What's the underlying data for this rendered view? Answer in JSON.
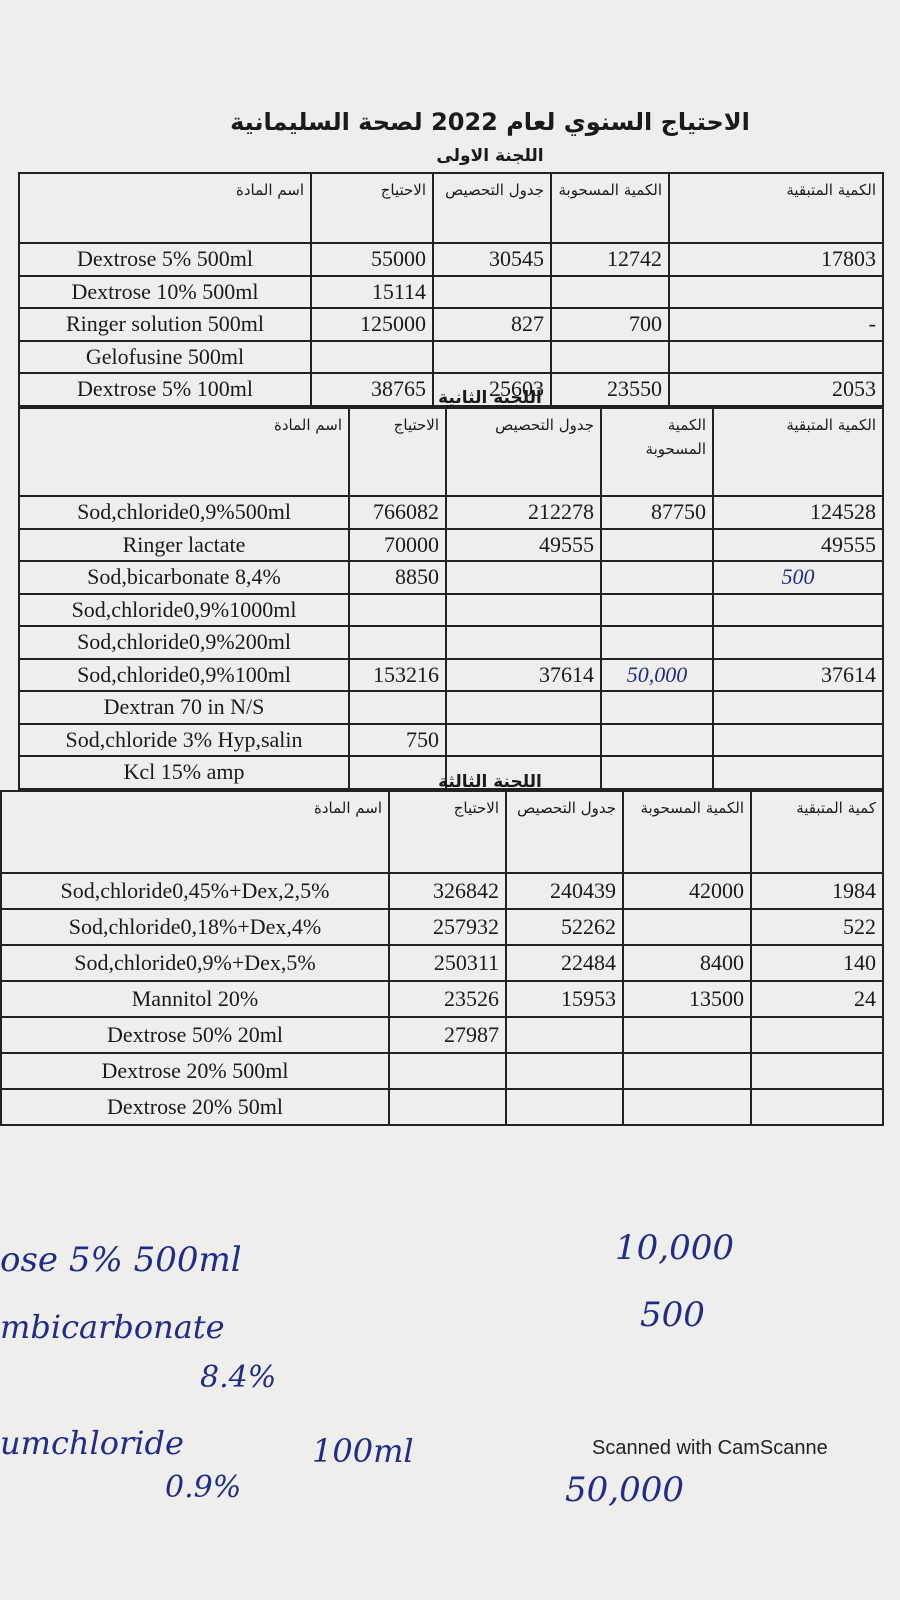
{
  "header": {
    "title": "الاحتياج السنوي لعام 2022 لصحة السليمانية"
  },
  "tables": [
    {
      "title": "اللجنة الاولى",
      "columns": [
        "اسم المادة",
        "الاحتياج",
        "جدول التحصيص",
        "الكمية المسحوبة",
        "الكمية المتبقية"
      ],
      "rows": [
        [
          "Dextrose 5% 500ml",
          "55000",
          "30545",
          "12742",
          "17803"
        ],
        [
          "Dextrose 10% 500ml",
          "15114",
          null,
          null,
          null
        ],
        [
          "Ringer solution 500ml",
          "125000",
          "827",
          "700",
          "-"
        ],
        [
          "Gelofusine 500ml",
          null,
          null,
          null,
          null
        ],
        [
          "Dextrose 5% 100ml",
          "38765",
          "25603",
          "23550",
          "2053"
        ]
      ]
    },
    {
      "title": "اللجنة الثانية",
      "columns": [
        "اسم المادة",
        "الاحتياج",
        "جدول التحصيص",
        "الكمية المسحوبة",
        "الكمية المتبقية"
      ],
      "rows": [
        [
          "Sod,chloride0,9%500ml",
          "766082",
          "212278",
          "87750",
          "124528"
        ],
        [
          "Ringer lactate",
          "70000",
          "49555",
          null,
          "49555"
        ],
        [
          "Sod,bicarbonate 8,4%",
          "8850",
          null,
          null,
          "500"
        ],
        [
          "Sod,chloride0,9%1000ml",
          null,
          null,
          null,
          null
        ],
        [
          "Sod,chloride0,9%200ml",
          null,
          null,
          null,
          null
        ],
        [
          "Sod,chloride0,9%100ml",
          "153216",
          "37614",
          "50,000",
          "37614"
        ],
        [
          "Dextran 70 in N/S",
          null,
          null,
          null,
          null
        ],
        [
          "Sod,chloride 3% Hyp,salin",
          "750",
          null,
          null,
          null
        ],
        [
          "Kcl 15% amp",
          null,
          null,
          null,
          null
        ]
      ]
    },
    {
      "title": "اللجنة الثالثة",
      "columns": [
        "اسم المادة",
        "الاحتياج",
        "جدول التحصيص",
        "الكمية المسحوبة",
        "كمية المتبقية"
      ],
      "rows": [
        [
          "Sod,chloride0,45%+Dex,2,5%",
          "326842",
          "240439",
          "42000",
          "1984"
        ],
        [
          "Sod,chloride0,18%+Dex,4%",
          "257932",
          "52262",
          null,
          "522"
        ],
        [
          "Sod,chloride0,9%+Dex,5%",
          "250311",
          "22484",
          "8400",
          "140"
        ],
        [
          "Mannitol 20%",
          "23526",
          "15953",
          "13500",
          "24"
        ],
        [
          "Dextrose 50% 20ml",
          "27987",
          null,
          null,
          null
        ],
        [
          "Dextrose 20% 500ml",
          null,
          null,
          null,
          null
        ],
        [
          "Dextrose 20% 50ml",
          null,
          null,
          null,
          null
        ]
      ]
    }
  ],
  "notes": [
    "ose 5% 500ml",
    "10,000",
    "mbicarbonate",
    "8.4%",
    "500",
    "umchloride",
    "0.9%",
    "100ml",
    "50,000"
  ],
  "footer": {
    "scanner": "Scanned with CamScanne"
  }
}
